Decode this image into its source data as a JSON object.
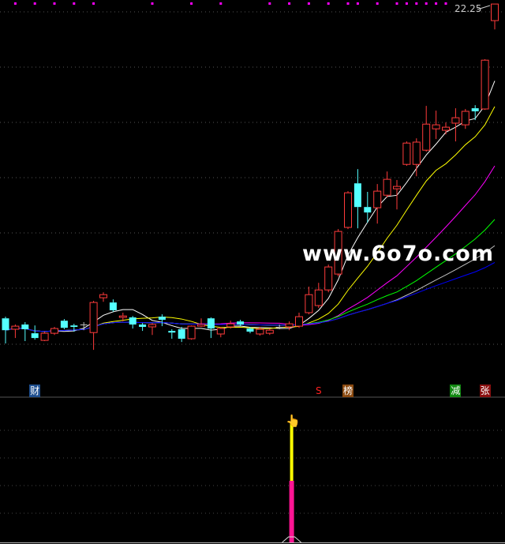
{
  "chart_data": {
    "type": "candlestick",
    "ylim": [
      6.42,
      22.42
    ],
    "grid": true,
    "max_price_label": "22.25",
    "colors": {
      "up": "#ff3b3b",
      "down": "#54ffff",
      "flat": "#c0c0c0"
    },
    "candles": [
      [
        8.98,
        9.05,
        7.92,
        8.48
      ],
      [
        8.52,
        8.72,
        8.15,
        8.65
      ],
      [
        8.72,
        8.82,
        8.02,
        8.52
      ],
      [
        8.35,
        8.68,
        8.08,
        8.15
      ],
      [
        8.05,
        8.42,
        8.02,
        8.35
      ],
      [
        8.35,
        8.62,
        8.28,
        8.55
      ],
      [
        8.88,
        8.95,
        8.52,
        8.58
      ],
      [
        8.68,
        8.75,
        8.42,
        8.62
      ],
      [
        8.72,
        8.82,
        8.48,
        8.72
      ],
      [
        8.38,
        9.72,
        7.65,
        9.65
      ],
      [
        9.85,
        10.08,
        9.68,
        9.98
      ],
      [
        9.65,
        9.78,
        9.25,
        9.32
      ],
      [
        9.02,
        9.22,
        8.85,
        9.08
      ],
      [
        9.02,
        9.08,
        8.55,
        8.72
      ],
      [
        8.72,
        8.78,
        8.45,
        8.62
      ],
      [
        8.62,
        8.78,
        8.28,
        8.72
      ],
      [
        9.05,
        9.15,
        8.65,
        8.92
      ],
      [
        8.45,
        8.52,
        8.12,
        8.38
      ],
      [
        8.52,
        8.62,
        7.98,
        8.12
      ],
      [
        8.12,
        8.68,
        8.08,
        8.65
      ],
      [
        8.65,
        8.98,
        8.62,
        8.72
      ],
      [
        8.98,
        9.02,
        8.15,
        8.55
      ],
      [
        8.32,
        8.62,
        8.18,
        8.55
      ],
      [
        8.62,
        8.88,
        8.55,
        8.75
      ],
      [
        8.85,
        8.92,
        8.65,
        8.72
      ],
      [
        8.55,
        8.62,
        8.35,
        8.42
      ],
      [
        8.32,
        8.62,
        8.25,
        8.52
      ],
      [
        8.35,
        8.55,
        8.28,
        8.48
      ],
      [
        8.62,
        8.72,
        8.52,
        8.62
      ],
      [
        8.62,
        8.85,
        8.48,
        8.75
      ],
      [
        8.65,
        9.22,
        8.58,
        9.05
      ],
      [
        9.22,
        10.32,
        9.15,
        9.98
      ],
      [
        9.52,
        10.48,
        9.42,
        10.18
      ],
      [
        10.18,
        11.25,
        10.08,
        11.15
      ],
      [
        10.85,
        12.75,
        10.75,
        12.65
      ],
      [
        12.82,
        14.35,
        12.75,
        14.28
      ],
      [
        14.68,
        15.28,
        12.78,
        13.68
      ],
      [
        13.68,
        14.32,
        13.02,
        13.45
      ],
      [
        13.65,
        14.65,
        12.98,
        14.35
      ],
      [
        14.18,
        15.18,
        14.08,
        14.85
      ],
      [
        14.45,
        14.82,
        13.58,
        14.55
      ],
      [
        15.48,
        16.45,
        15.42,
        16.38
      ],
      [
        15.48,
        16.58,
        14.98,
        16.42
      ],
      [
        16.08,
        17.95,
        16.02,
        17.18
      ],
      [
        16.98,
        17.75,
        16.55,
        17.15
      ],
      [
        16.92,
        17.25,
        16.75,
        17.05
      ],
      [
        17.22,
        17.85,
        16.45,
        17.45
      ],
      [
        17.15,
        17.82,
        16.98,
        17.72
      ],
      [
        17.85,
        17.98,
        17.35,
        17.72
      ],
      [
        17.82,
        19.92,
        17.78,
        19.88
      ],
      [
        21.55,
        22.25,
        21.18,
        22.25
      ]
    ],
    "moving_averages": [
      {
        "period": 5,
        "color": "#ffffff"
      },
      {
        "period": 10,
        "color": "#ffff00"
      },
      {
        "period": 20,
        "color": "#ff00ff"
      },
      {
        "period": 30,
        "color": "#00ff00"
      },
      {
        "period": 40,
        "color": "#c0c0c0"
      },
      {
        "period": 60,
        "color": "#0000ff"
      }
    ],
    "top_dot_candles": [
      1,
      3,
      5,
      7,
      9,
      15,
      19,
      22,
      27,
      29,
      31,
      33,
      35,
      36,
      38,
      40,
      41,
      42,
      43,
      44,
      45
    ],
    "top_dot_color": "#ff00ff",
    "indicator": {
      "bar_candle": 29,
      "yellow_level": 100,
      "magenta_level": 52,
      "yellow_color": "#ffff00",
      "magenta_color": "#ff1493"
    }
  },
  "markers": [
    {
      "text": "财",
      "candle": 3,
      "bg": "#1f4f8f",
      "fg": "#ffffff"
    },
    {
      "text": "S",
      "candle": 32,
      "bg": "transparent",
      "fg": "#ff2020"
    },
    {
      "text": "榜",
      "candle": 35,
      "bg": "#8b4a10",
      "fg": "#ffffff"
    },
    {
      "text": "减",
      "candle": 46,
      "bg": "#138a13",
      "fg": "#ffffff"
    },
    {
      "text": "张",
      "candle": 49,
      "bg": "#8a1010",
      "fg": "#ffffff"
    }
  ],
  "watermark": "www.6o7o.com"
}
